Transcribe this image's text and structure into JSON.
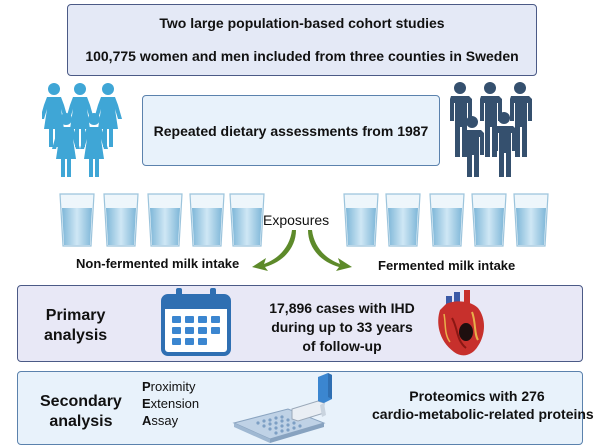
{
  "header": {
    "line1": "Two large population-based cohort studies",
    "line2": "100,775 women and men included from three counties in Sweden"
  },
  "diet": {
    "text": "Repeated dietary assessments from 1987"
  },
  "exposures": {
    "label": "Exposures",
    "left_label": "Non-fermented milk intake",
    "right_label": "Fermented milk intake"
  },
  "primary": {
    "title_line1": "Primary",
    "title_line2": "analysis",
    "result_line1": "17,896 cases with IHD",
    "result_line2": "during up to 33 years",
    "result_line3": "of follow-up"
  },
  "secondary": {
    "title_line1": "Secondary",
    "title_line2": "analysis",
    "pea_line1_first": "P",
    "pea_line1_rest": "roximity",
    "pea_line2_first": "E",
    "pea_line2_rest": "xtension",
    "pea_line3_first": "A",
    "pea_line3_rest": "ssay",
    "result_line1": "Proteomics with 276",
    "result_line2": "cardio-metabolic-related proteins"
  },
  "colors": {
    "women": "#3fa6d6",
    "men": "#35506e",
    "arrow": "#5d8a2a",
    "calendar": "#2f6fb2",
    "heart": "#c7302c"
  },
  "icons": [
    "women-group-icon",
    "men-group-icon",
    "glass-of-milk-icon",
    "calendar-icon",
    "heart-icon",
    "pipette-plate-icon"
  ]
}
